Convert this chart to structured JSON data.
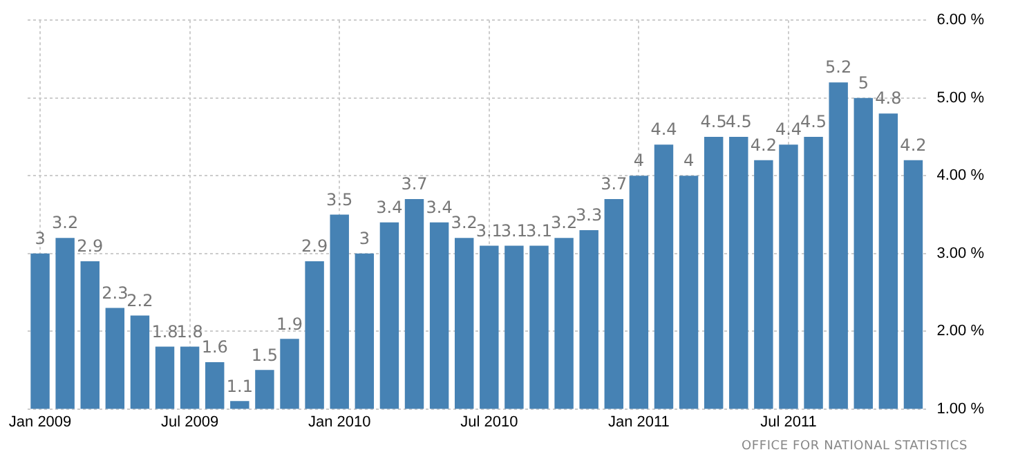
{
  "chart_data": {
    "type": "bar",
    "categories": [
      "Jan 2009",
      null,
      null,
      null,
      null,
      null,
      "Jul 2009",
      null,
      null,
      null,
      null,
      null,
      "Jan 2010",
      null,
      null,
      null,
      null,
      null,
      "Jul 2010",
      null,
      null,
      null,
      null,
      null,
      "Jan 2011",
      null,
      null,
      null,
      null,
      null,
      "Jul 2011",
      null,
      null,
      null,
      null,
      null
    ],
    "values": [
      3,
      3.2,
      2.9,
      2.3,
      2.2,
      1.8,
      1.8,
      1.6,
      1.1,
      1.5,
      1.9,
      2.9,
      3.5,
      3,
      3.4,
      3.7,
      3.4,
      3.2,
      3.1,
      3.1,
      3.1,
      3.2,
      3.3,
      3.7,
      4,
      4.4,
      4,
      4.5,
      4.5,
      4.2,
      4.4,
      4.5,
      5.2,
      5,
      4.8,
      4.2
    ],
    "color": "#4682b4",
    "ylim": [
      1,
      6
    ],
    "yticks": [
      {
        "value": 1,
        "label": "1.00 %"
      },
      {
        "value": 2,
        "label": "2.00 %"
      },
      {
        "value": 3,
        "label": "3.00 %"
      },
      {
        "value": 4,
        "label": "4.00 %"
      },
      {
        "value": 5,
        "label": "5.00 %"
      },
      {
        "value": 6,
        "label": "6.00 %"
      }
    ],
    "grid": true,
    "data_labels": true,
    "annotations": [
      "OFFICE FOR NATIONAL STATISTICS"
    ]
  }
}
